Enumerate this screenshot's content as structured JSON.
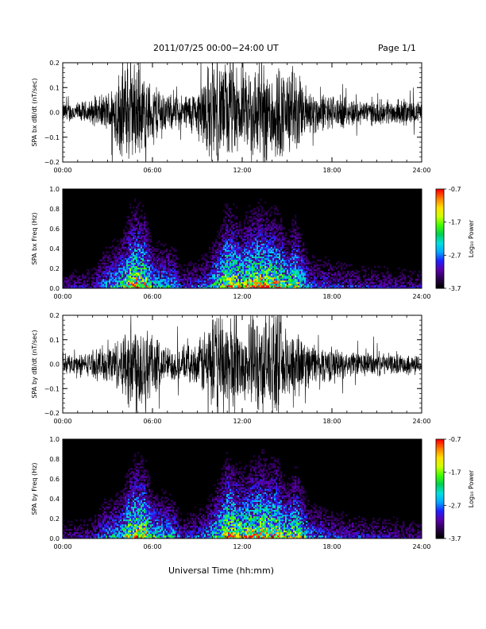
{
  "header": {
    "title": "2011/07/25  00:00−24:00 UT",
    "page_label": "Page 1/1"
  },
  "x_axis_title": "Universal Time (hh:mm)",
  "colorbar": {
    "label": "Log₁₀ Power",
    "ticks": [
      "-0.7",
      "-1.7",
      "-2.7",
      "-3.7"
    ],
    "range": [
      -3.7,
      -0.7
    ],
    "colors": [
      "#000000",
      "#2c0050",
      "#5a00aa",
      "#2020ff",
      "#00aaff",
      "#00e0e0",
      "#00d050",
      "#40ff00",
      "#d0ff00",
      "#ffe000",
      "#ff8000",
      "#ff0000"
    ]
  },
  "chart_data": [
    {
      "type": "line",
      "panel": "bx-waveform",
      "ylabel": "SPA bx dB/dt (nT/sec)",
      "x_tick_labels": [
        "00:00",
        "06:00",
        "12:00",
        "18:00",
        "24:00"
      ],
      "y_tick_labels": [
        "0.2",
        "0.1",
        "0.0",
        "−0.1",
        "−0.2"
      ],
      "xlim": [
        0,
        24
      ],
      "ylim": [
        -0.2,
        0.2
      ],
      "envelope_hours": [
        0,
        1,
        2,
        3,
        4,
        4.5,
        5,
        5.5,
        6,
        6.5,
        7,
        8,
        9,
        9.5,
        10,
        10.5,
        11,
        11.5,
        12,
        12.5,
        13,
        13.5,
        14,
        14.5,
        15,
        15.5,
        16,
        17,
        18,
        19,
        20,
        21,
        22,
        23,
        24
      ],
      "envelope_amplitude": [
        0.04,
        0.04,
        0.05,
        0.08,
        0.2,
        0.2,
        0.2,
        0.15,
        0.11,
        0.12,
        0.07,
        0.07,
        0.09,
        0.18,
        0.2,
        0.2,
        0.2,
        0.2,
        0.12,
        0.2,
        0.2,
        0.2,
        0.2,
        0.2,
        0.16,
        0.2,
        0.12,
        0.08,
        0.07,
        0.06,
        0.05,
        0.05,
        0.05,
        0.05,
        0.04
      ]
    },
    {
      "type": "heatmap",
      "panel": "bx-spectrogram",
      "ylabel": "SPA bx Freq (Hz)",
      "x_tick_labels": [
        "00:00",
        "06:00",
        "12:00",
        "18:00",
        "24:00"
      ],
      "y_tick_labels": [
        "1.0",
        "0.8",
        "0.6",
        "0.4",
        "0.2",
        "0.0"
      ],
      "xlim": [
        0,
        24
      ],
      "ylim": [
        0,
        1.0
      ],
      "zlim": [
        -3.7,
        -0.7
      ],
      "activity_hours": [
        0,
        2,
        2.7,
        3.9,
        4.5,
        5,
        5.5,
        6,
        7.4,
        8,
        9.5,
        10.5,
        11,
        11.5,
        12,
        12.5,
        13.3,
        13.8,
        14.3,
        15,
        15.6,
        16.5,
        18,
        20,
        22,
        24
      ],
      "activity_level": [
        0.3,
        0.32,
        0.5,
        0.65,
        0.9,
        0.95,
        0.9,
        0.6,
        0.55,
        0.35,
        0.45,
        0.75,
        0.95,
        0.9,
        0.8,
        0.9,
        0.95,
        0.9,
        0.92,
        0.7,
        0.85,
        0.45,
        0.4,
        0.35,
        0.32,
        0.3
      ]
    },
    {
      "type": "line",
      "panel": "by-waveform",
      "ylabel": "SPA by dB/dt (nT/sec)",
      "x_tick_labels": [
        "00:00",
        "06:00",
        "12:00",
        "18:00",
        "24:00"
      ],
      "y_tick_labels": [
        "0.2",
        "0.1",
        "0.0",
        "−0.1",
        "−0.2"
      ],
      "xlim": [
        0,
        24
      ],
      "ylim": [
        -0.2,
        0.2
      ],
      "envelope_hours": [
        0,
        1,
        2,
        2.5,
        3,
        4,
        4.5,
        5,
        5.5,
        6,
        6.5,
        7,
        8,
        9,
        9.5,
        10,
        10.5,
        11,
        11.5,
        12,
        12.5,
        13,
        13.5,
        14,
        14.5,
        15,
        15.5,
        16,
        17,
        18,
        19,
        20,
        21,
        22,
        23,
        24
      ],
      "envelope_amplitude": [
        0.04,
        0.04,
        0.05,
        0.07,
        0.08,
        0.12,
        0.2,
        0.2,
        0.2,
        0.12,
        0.1,
        0.07,
        0.07,
        0.08,
        0.15,
        0.2,
        0.2,
        0.2,
        0.2,
        0.12,
        0.2,
        0.2,
        0.2,
        0.2,
        0.2,
        0.12,
        0.2,
        0.1,
        0.08,
        0.07,
        0.05,
        0.05,
        0.05,
        0.04,
        0.04,
        0.04
      ]
    },
    {
      "type": "heatmap",
      "panel": "by-spectrogram",
      "ylabel": "SPA by Freq (Hz)",
      "x_tick_labels": [
        "00:00",
        "06:00",
        "12:00",
        "18:00",
        "24:00"
      ],
      "y_tick_labels": [
        "1.0",
        "0.8",
        "0.6",
        "0.4",
        "0.2",
        "0.0"
      ],
      "xlim": [
        0,
        24
      ],
      "ylim": [
        0,
        1.0
      ],
      "zlim": [
        -3.7,
        -0.7
      ],
      "activity_hours": [
        0,
        2,
        2.7,
        3.9,
        4.5,
        5,
        5.5,
        6,
        7.4,
        8,
        9.5,
        10.5,
        11,
        11.5,
        12,
        12.5,
        13.3,
        13.8,
        14.3,
        15,
        15.6,
        16.5,
        18,
        20,
        22,
        24
      ],
      "activity_level": [
        0.3,
        0.32,
        0.5,
        0.6,
        0.88,
        0.95,
        0.9,
        0.65,
        0.55,
        0.35,
        0.45,
        0.75,
        0.95,
        0.9,
        0.82,
        0.9,
        0.95,
        0.9,
        0.92,
        0.7,
        0.85,
        0.5,
        0.4,
        0.35,
        0.32,
        0.3
      ]
    }
  ]
}
